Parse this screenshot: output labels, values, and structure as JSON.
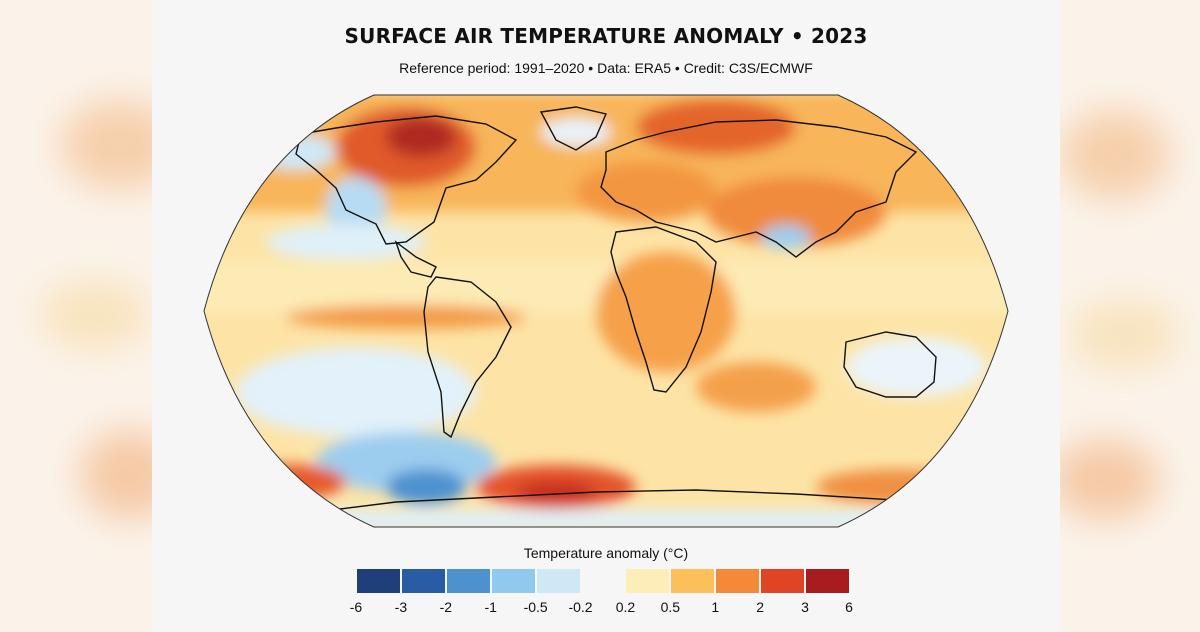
{
  "map": {
    "title": "SURFACE AIR TEMPERATURE ANOMALY • 2023",
    "subtitle": "Reference period: 1991–2020 • Data: ERA5 • Credit: C3S/ECMWF",
    "projection": "Robinson-like world map",
    "regions_description": "Warm anomalies dominate: strongest over northern Canada, Arctic, eastern Europe/Russia and parts of the Southern Ocean; cool anomalies in the southeast Pacific, Alaska, and near Antarctica."
  },
  "legend": {
    "title": "Temperature anomaly (°C)",
    "colors": [
      "#1f3f7a",
      "#2a5ca6",
      "#4d92cf",
      "#90c9ee",
      "#cfe8f6",
      "#f6f6f6",
      "#fdeeb9",
      "#fbc05a",
      "#f5893a",
      "#df4425",
      "#a71d1f"
    ],
    "ticks": [
      "-6",
      "-3",
      "-2",
      "-1",
      "-0.5",
      "-0.2",
      "0.2",
      "0.5",
      "1",
      "2",
      "3",
      "6"
    ]
  }
}
